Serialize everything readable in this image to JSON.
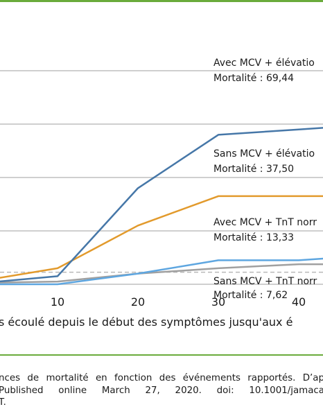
{
  "colors": {
    "accent_rule": "#6aab3b",
    "series_blue": "#4677a8",
    "series_orange": "#e29a2c",
    "series_lightblue": "#5ea6e0",
    "series_gray": "#a0a0a0",
    "reference_line": "#b8b8b8",
    "gridline": "#cfcfcf"
  },
  "chart_data": {
    "type": "line",
    "xlabel": "s écoulé depuis le début des symptômes jusqu'aux é",
    "x_ticks": [
      "10",
      "20",
      "30",
      "40"
    ],
    "xlim": [
      0,
      45
    ],
    "ylim": [
      0,
      80
    ],
    "grid": true,
    "x": [
      0,
      10,
      20,
      30,
      40,
      45
    ],
    "series": [
      {
        "key": "blue",
        "values": [
          0.3,
          3,
          36,
          56,
          58,
          59
        ],
        "color": "#4677a8"
      },
      {
        "key": "orange",
        "values": [
          1,
          6,
          22,
          33,
          33,
          33
        ],
        "color": "#e29a2c"
      },
      {
        "key": "lightblue",
        "values": [
          0,
          0,
          4,
          9,
          9,
          10
        ],
        "color": "#5ea6e0"
      },
      {
        "key": "gray",
        "values": [
          0.5,
          1,
          4,
          6,
          7.5,
          7.5
        ],
        "color": "#a0a0a0"
      }
    ],
    "reference_line": {
      "value": 4.5,
      "style": "dashed",
      "color": "#b8b8b8"
    },
    "annotations": [
      {
        "line1": "Avec MCV + élévatio",
        "line2": "Mortalité : 69,44"
      },
      {
        "line1": "Sans MCV + élévatio",
        "line2": "Mortalité : 37,50"
      },
      {
        "line1": "Avec MCV + TnT norr",
        "line2": "Mortalité : 13,33"
      },
      {
        "line1": "Sans MCV + TnT norr",
        "line2": "Mortalité : 7,62"
      }
    ]
  },
  "caption": {
    "line1": "nces de mortalité en fonction des événements rapportés. D’ap",
    "line2": " Published  online  March  27,  2020.  doi:  10.1001/jamaca",
    "line3": "T."
  }
}
